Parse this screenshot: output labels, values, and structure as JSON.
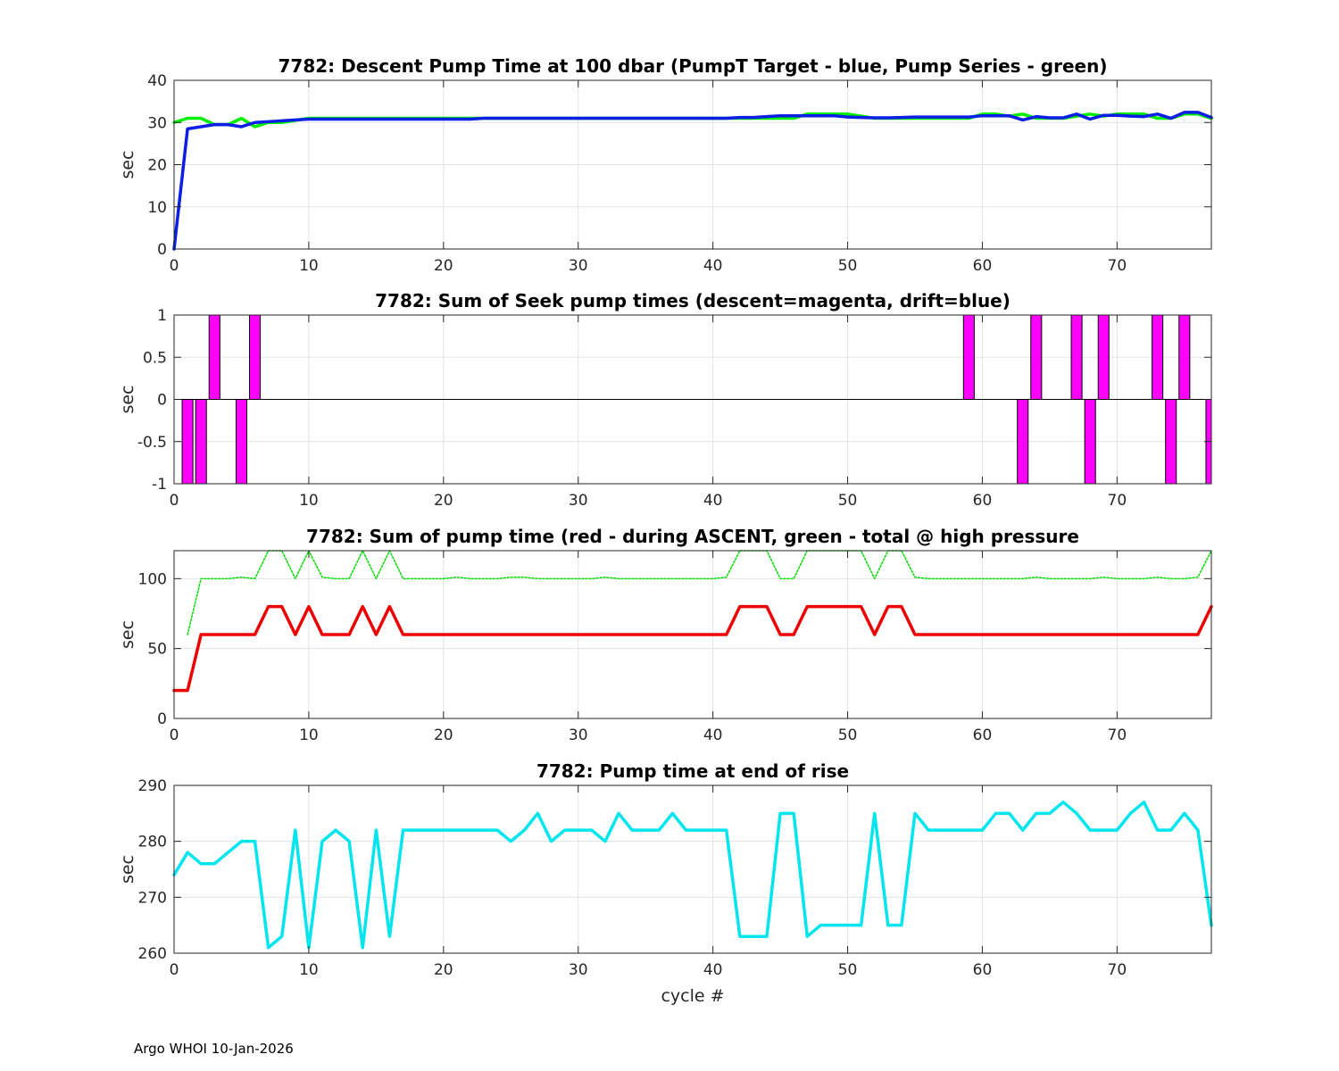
{
  "footer": "Argo WHOI 10-Jan-2026",
  "chart_data": [
    {
      "type": "line",
      "title": "7782: Descent Pump Time at 100 dbar (PumpT Target - blue, Pump Series - green)",
      "xlabel": "",
      "ylabel": "sec",
      "xlim": [
        0,
        77
      ],
      "ylim": [
        0,
        40
      ],
      "xticks": [
        0,
        10,
        20,
        30,
        40,
        50,
        60,
        70
      ],
      "yticks": [
        0,
        10,
        20,
        30,
        40
      ],
      "grid": true,
      "series": [
        {
          "name": "Pump Series",
          "color": "#00ee00",
          "style": "solid",
          "width": 3.5,
          "x": [
            0,
            1,
            2,
            3,
            4,
            5,
            6,
            7,
            8,
            9,
            10,
            11,
            12,
            13,
            14,
            15,
            16,
            17,
            18,
            19,
            20,
            21,
            22,
            23,
            24,
            25,
            26,
            27,
            28,
            29,
            30,
            31,
            32,
            33,
            34,
            35,
            36,
            37,
            38,
            39,
            40,
            41,
            42,
            43,
            44,
            45,
            46,
            47,
            48,
            49,
            50,
            51,
            52,
            53,
            54,
            55,
            56,
            57,
            58,
            59,
            60,
            61,
            62,
            63,
            64,
            65,
            66,
            67,
            68,
            69,
            70,
            71,
            72,
            73,
            74,
            75,
            76,
            77
          ],
          "values": [
            30,
            31,
            31,
            29.5,
            29.5,
            31,
            29,
            30,
            30,
            30.5,
            31,
            31,
            31,
            31,
            31,
            31,
            31,
            31,
            31,
            31,
            31,
            31,
            31,
            31,
            31,
            31,
            31,
            31,
            31,
            31,
            31,
            31,
            31,
            31,
            31,
            31,
            31,
            31,
            31,
            31,
            31,
            31,
            31,
            31,
            31,
            31,
            31,
            32,
            32,
            32,
            32,
            31.5,
            31,
            31,
            31,
            31,
            31,
            31,
            31,
            31,
            32,
            32,
            31.5,
            32,
            31,
            31,
            31,
            31.5,
            32,
            31.5,
            32,
            32,
            32,
            31,
            31,
            32,
            32,
            31
          ]
        },
        {
          "name": "PumpT Target",
          "color": "#0a1ee6",
          "style": "solid",
          "width": 3.5,
          "x": [
            0,
            1,
            2,
            3,
            4,
            5,
            6,
            7,
            8,
            9,
            10,
            11,
            12,
            13,
            14,
            15,
            16,
            17,
            18,
            19,
            20,
            21,
            22,
            23,
            24,
            25,
            26,
            27,
            28,
            29,
            30,
            31,
            32,
            33,
            34,
            35,
            36,
            37,
            38,
            39,
            40,
            41,
            42,
            43,
            44,
            45,
            46,
            47,
            48,
            49,
            50,
            51,
            52,
            53,
            54,
            55,
            56,
            57,
            58,
            59,
            60,
            61,
            62,
            63,
            64,
            65,
            66,
            67,
            68,
            69,
            70,
            71,
            72,
            73,
            74,
            75,
            76,
            77
          ],
          "values": [
            0,
            28.5,
            29,
            29.5,
            29.5,
            29,
            30,
            30.2,
            30.4,
            30.6,
            30.8,
            30.8,
            30.8,
            30.8,
            30.8,
            30.8,
            30.8,
            30.8,
            30.8,
            30.8,
            30.8,
            30.8,
            30.8,
            31,
            31,
            31,
            31,
            31,
            31,
            31,
            31,
            31,
            31,
            31,
            31,
            31,
            31,
            31,
            31,
            31,
            31,
            31,
            31.2,
            31.2,
            31.4,
            31.6,
            31.6,
            31.6,
            31.6,
            31.6,
            31.3,
            31.2,
            31.1,
            31.1,
            31.2,
            31.3,
            31.3,
            31.3,
            31.3,
            31.3,
            31.6,
            31.6,
            31.6,
            30.6,
            31.4,
            31.1,
            31.1,
            32,
            30.8,
            31.7,
            31.7,
            31.5,
            31.4,
            32,
            31,
            32.4,
            32.4,
            31.2
          ]
        }
      ]
    },
    {
      "type": "bar",
      "title": "7782: Sum of Seek pump times (descent=magenta, drift=blue)",
      "xlabel": "",
      "ylabel": "sec",
      "xlim": [
        0,
        77
      ],
      "ylim": [
        -1,
        1
      ],
      "xticks": [
        0,
        10,
        20,
        30,
        40,
        50,
        60,
        70
      ],
      "yticks": [
        -1,
        -0.5,
        0,
        0.5,
        1
      ],
      "grid": true,
      "series": [
        {
          "name": "descent",
          "color": "#ff00ff",
          "x": [
            1,
            2,
            3,
            5,
            6,
            59,
            63,
            64,
            67,
            68,
            69,
            73,
            74,
            75,
            77
          ],
          "values": [
            -1,
            -1,
            1,
            -1,
            1,
            1,
            -1,
            1,
            1,
            -1,
            1,
            1,
            -1,
            1,
            -1
          ]
        }
      ]
    },
    {
      "type": "line",
      "title": "7782: Sum of pump time (red - during ASCENT, green - total @ high pressure",
      "xlabel": "",
      "ylabel": "sec",
      "xlim": [
        0,
        77
      ],
      "ylim": [
        0,
        120
      ],
      "xticks": [
        0,
        10,
        20,
        30,
        40,
        50,
        60,
        70
      ],
      "yticks": [
        0,
        50,
        100
      ],
      "grid": true,
      "series": [
        {
          "name": "total @ high pressure",
          "color": "#00dd00",
          "style": "dotted",
          "width": 1.5,
          "x": [
            1,
            2,
            3,
            4,
            5,
            6,
            7,
            8,
            9,
            10,
            11,
            12,
            13,
            14,
            15,
            16,
            17,
            18,
            19,
            20,
            21,
            22,
            23,
            24,
            25,
            26,
            27,
            28,
            29,
            30,
            31,
            32,
            33,
            34,
            35,
            36,
            37,
            38,
            39,
            40,
            41,
            42,
            43,
            44,
            45,
            46,
            47,
            48,
            49,
            50,
            51,
            52,
            53,
            54,
            55,
            56,
            57,
            58,
            59,
            60,
            61,
            62,
            63,
            64,
            65,
            66,
            67,
            68,
            69,
            70,
            71,
            72,
            73,
            74,
            75,
            76,
            77
          ],
          "values": [
            60,
            100,
            100,
            100,
            101,
            100,
            120,
            120,
            100,
            120,
            101,
            100,
            100,
            120,
            100,
            120,
            100,
            100,
            100,
            100,
            101,
            100,
            100,
            100,
            101,
            101,
            100,
            100,
            100,
            100,
            100,
            101,
            100,
            100,
            100,
            100,
            100,
            100,
            100,
            100,
            101,
            120,
            120,
            120,
            100,
            100,
            120,
            120,
            120,
            120,
            120,
            100,
            120,
            120,
            101,
            100,
            100,
            100,
            100,
            100,
            100,
            100,
            100,
            101,
            100,
            100,
            100,
            100,
            101,
            100,
            100,
            100,
            101,
            100,
            100,
            101,
            120
          ]
        },
        {
          "name": "during ASCENT",
          "color": "#ee0000",
          "style": "solid",
          "width": 3.5,
          "x": [
            0,
            1,
            2,
            3,
            4,
            5,
            6,
            7,
            8,
            9,
            10,
            11,
            12,
            13,
            14,
            15,
            16,
            17,
            18,
            19,
            20,
            21,
            22,
            23,
            24,
            25,
            26,
            27,
            28,
            29,
            30,
            31,
            32,
            33,
            34,
            35,
            36,
            37,
            38,
            39,
            40,
            41,
            42,
            43,
            44,
            45,
            46,
            47,
            48,
            49,
            50,
            51,
            52,
            53,
            54,
            55,
            56,
            57,
            58,
            59,
            60,
            61,
            62,
            63,
            64,
            65,
            66,
            67,
            68,
            69,
            70,
            71,
            72,
            73,
            74,
            75,
            76,
            77
          ],
          "values": [
            20,
            20,
            60,
            60,
            60,
            60,
            60,
            80,
            80,
            60,
            80,
            60,
            60,
            60,
            80,
            60,
            80,
            60,
            60,
            60,
            60,
            60,
            60,
            60,
            60,
            60,
            60,
            60,
            60,
            60,
            60,
            60,
            60,
            60,
            60,
            60,
            60,
            60,
            60,
            60,
            60,
            60,
            80,
            80,
            80,
            60,
            60,
            80,
            80,
            80,
            80,
            80,
            60,
            80,
            80,
            60,
            60,
            60,
            60,
            60,
            60,
            60,
            60,
            60,
            60,
            60,
            60,
            60,
            60,
            60,
            60,
            60,
            60,
            60,
            60,
            60,
            60,
            80
          ]
        }
      ]
    },
    {
      "type": "line",
      "title": "7782: Pump time at end of rise",
      "xlabel": "cycle #",
      "ylabel": "sec",
      "xlim": [
        0,
        77
      ],
      "ylim": [
        260,
        290
      ],
      "xticks": [
        0,
        10,
        20,
        30,
        40,
        50,
        60,
        70
      ],
      "yticks": [
        260,
        270,
        280,
        290
      ],
      "grid": true,
      "series": [
        {
          "name": "end of rise",
          "color": "#00e5ee",
          "style": "solid",
          "width": 3.5,
          "x": [
            0,
            1,
            2,
            3,
            4,
            5,
            6,
            7,
            8,
            9,
            10,
            11,
            12,
            13,
            14,
            15,
            16,
            17,
            18,
            19,
            20,
            21,
            22,
            23,
            24,
            25,
            26,
            27,
            28,
            29,
            30,
            31,
            32,
            33,
            34,
            35,
            36,
            37,
            38,
            39,
            40,
            41,
            42,
            43,
            44,
            45,
            46,
            47,
            48,
            49,
            50,
            51,
            52,
            53,
            54,
            55,
            56,
            57,
            58,
            59,
            60,
            61,
            62,
            63,
            64,
            65,
            66,
            67,
            68,
            69,
            70,
            71,
            72,
            73,
            74,
            75,
            76,
            77
          ],
          "values": [
            274,
            278,
            276,
            276,
            278,
            280,
            280,
            261,
            263,
            282,
            261,
            280,
            282,
            280,
            261,
            282,
            263,
            282,
            282,
            282,
            282,
            282,
            282,
            282,
            282,
            280,
            282,
            285,
            280,
            282,
            282,
            282,
            280,
            285,
            282,
            282,
            282,
            285,
            282,
            282,
            282,
            282,
            263,
            263,
            263,
            285,
            285,
            263,
            265,
            265,
            265,
            265,
            285,
            265,
            265,
            285,
            282,
            282,
            282,
            282,
            282,
            285,
            285,
            282,
            285,
            285,
            287,
            285,
            282,
            282,
            282,
            285,
            287,
            282,
            282,
            285,
            282,
            265
          ]
        }
      ]
    }
  ]
}
